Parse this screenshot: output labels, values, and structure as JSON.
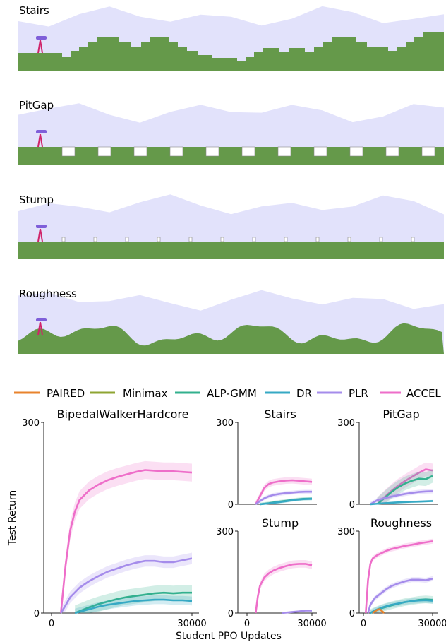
{
  "env_panels": [
    {
      "label": "Stairs"
    },
    {
      "label": "PitGap"
    },
    {
      "label": "Stump"
    },
    {
      "label": "Roughness"
    }
  ],
  "colors": {
    "sky": "#e2e2fb",
    "ground": "#65994a",
    "obstacle_outline": "#888888",
    "walker_head": "#7f5fd9",
    "walker_leg": "#d0246a"
  },
  "legend": [
    {
      "name": "PAIRED",
      "color": "#e8832d"
    },
    {
      "name": "Minimax",
      "color": "#8fa533"
    },
    {
      "name": "ALP-GMM",
      "color": "#33b08e"
    },
    {
      "name": "DR",
      "color": "#36a9c4"
    },
    {
      "name": "PLR",
      "color": "#a58ceb"
    },
    {
      "name": "ACCEL",
      "color": "#ee6ec9"
    }
  ],
  "shared_axes": {
    "ylabel": "Test Return",
    "xlabel": "Student PPO Updates"
  },
  "chart_data": [
    {
      "type": "line",
      "title": "BipedalWalkerHardcore",
      "xlim": [
        0,
        30000
      ],
      "ylim": [
        0,
        300
      ],
      "xticks": [
        0,
        30000
      ],
      "yticks": [
        0,
        300
      ],
      "series": [
        {
          "name": "ACCEL",
          "color": "#ee6ec9",
          "band": 14,
          "x": [
            2000,
            3000,
            4000,
            5000,
            6000,
            8000,
            10000,
            12000,
            14000,
            16000,
            18000,
            20000,
            22000,
            24000,
            26000,
            28000,
            30000
          ],
          "y": [
            0,
            75,
            130,
            160,
            178,
            193,
            202,
            209,
            214,
            218,
            222,
            225,
            224,
            223,
            223,
            222,
            221
          ]
        },
        {
          "name": "PLR",
          "color": "#a58ceb",
          "band": 9,
          "x": [
            2000,
            3000,
            4000,
            6000,
            8000,
            10000,
            12000,
            14000,
            16000,
            18000,
            20000,
            22000,
            24000,
            26000,
            28000,
            30000
          ],
          "y": [
            0,
            12,
            25,
            40,
            50,
            58,
            65,
            70,
            75,
            79,
            82,
            82,
            80,
            80,
            83,
            86
          ]
        },
        {
          "name": "ALP-GMM",
          "color": "#33b08e",
          "band": 12,
          "x": [
            5000,
            8000,
            10000,
            12000,
            14000,
            16000,
            18000,
            20000,
            22000,
            24000,
            26000,
            28000,
            30000
          ],
          "y": [
            0,
            9,
            14,
            18,
            22,
            25,
            27,
            29,
            31,
            32,
            31,
            32,
            32
          ]
        },
        {
          "name": "DR",
          "color": "#36a9c4",
          "band": 7,
          "x": [
            5000,
            8000,
            10000,
            12000,
            14000,
            16000,
            18000,
            20000,
            22000,
            24000,
            26000,
            28000,
            30000
          ],
          "y": [
            0,
            6,
            10,
            13,
            15,
            17,
            19,
            20,
            21,
            21,
            20,
            20,
            19
          ]
        }
      ]
    },
    {
      "type": "line",
      "title": "Stairs",
      "xlim": [
        0,
        30000
      ],
      "ylim": [
        0,
        300
      ],
      "xticks": [],
      "yticks": [
        0,
        300
      ],
      "series": [
        {
          "name": "ACCEL",
          "color": "#ee6ec9",
          "band": 12,
          "x": [
            4000,
            6000,
            8000,
            10000,
            12000,
            15000,
            18000,
            21000,
            24000,
            27000,
            30000
          ],
          "y": [
            0,
            30,
            60,
            74,
            80,
            84,
            87,
            88,
            86,
            84,
            82
          ]
        },
        {
          "name": "PLR",
          "color": "#a58ceb",
          "band": 7,
          "x": [
            4000,
            6000,
            8000,
            10000,
            12000,
            15000,
            18000,
            21000,
            24000,
            27000,
            30000
          ],
          "y": [
            0,
            12,
            22,
            29,
            34,
            38,
            41,
            43,
            45,
            46,
            46
          ]
        },
        {
          "name": "ALP-GMM",
          "color": "#33b08e",
          "band": 6,
          "x": [
            6000,
            10000,
            14000,
            18000,
            22000,
            26000,
            30000
          ],
          "y": [
            0,
            4,
            9,
            13,
            17,
            20,
            21
          ]
        },
        {
          "name": "DR",
          "color": "#36a9c4",
          "band": 5,
          "x": [
            6000,
            10000,
            14000,
            18000,
            22000,
            26000,
            30000
          ],
          "y": [
            0,
            3,
            7,
            11,
            16,
            19,
            20
          ]
        }
      ]
    },
    {
      "type": "line",
      "title": "PitGap",
      "xlim": [
        0,
        30000
      ],
      "ylim": [
        0,
        300
      ],
      "xticks": [],
      "yticks": [
        0,
        300
      ],
      "series": [
        {
          "name": "ACCEL",
          "color": "#ee6ec9",
          "band": 25,
          "x": [
            6000,
            9000,
            12000,
            15000,
            18000,
            21000,
            24000,
            27000,
            30000
          ],
          "y": [
            0,
            25,
            48,
            68,
            85,
            100,
            115,
            128,
            124
          ]
        },
        {
          "name": "ALP-GMM",
          "color": "#33b08e",
          "band": 25,
          "x": [
            6000,
            9000,
            12000,
            15000,
            18000,
            21000,
            24000,
            27000,
            30000
          ],
          "y": [
            0,
            22,
            44,
            62,
            76,
            86,
            94,
            92,
            104
          ]
        },
        {
          "name": "PLR",
          "color": "#a58ceb",
          "band": 8,
          "x": [
            3000,
            6000,
            9000,
            12000,
            15000,
            18000,
            21000,
            24000,
            27000,
            30000
          ],
          "y": [
            0,
            15,
            22,
            28,
            33,
            38,
            42,
            45,
            47,
            48
          ]
        },
        {
          "name": "DR",
          "color": "#36a9c4",
          "band": 4,
          "x": [
            3000,
            9000,
            15000,
            21000,
            25000,
            30000
          ],
          "y": [
            0,
            4,
            7,
            9,
            10,
            12
          ]
        }
      ]
    },
    {
      "type": "line",
      "title": "Stump",
      "xlim": [
        0,
        30000
      ],
      "ylim": [
        0,
        300
      ],
      "xticks": [
        0,
        30000
      ],
      "yticks": [
        0,
        300
      ],
      "series": [
        {
          "name": "ACCEL",
          "color": "#ee6ec9",
          "band": 14,
          "x": [
            4000,
            5000,
            6000,
            8000,
            10000,
            12000,
            15000,
            18000,
            21000,
            24000,
            27000,
            30000
          ],
          "y": [
            0,
            60,
            100,
            130,
            145,
            155,
            165,
            172,
            178,
            180,
            180,
            175
          ]
        },
        {
          "name": "PLR",
          "color": "#a58ceb",
          "band": 4,
          "x": [
            16000,
            20000,
            24000,
            27000,
            30000
          ],
          "y": [
            0,
            3,
            6,
            9,
            9
          ]
        }
      ]
    },
    {
      "type": "line",
      "title": "Roughness",
      "xlim": [
        0,
        30000
      ],
      "ylim": [
        0,
        300
      ],
      "xticks": [
        0,
        30000
      ],
      "yticks": [
        0,
        300
      ],
      "series": [
        {
          "name": "ACCEL",
          "color": "#ee6ec9",
          "band": 9,
          "x": [
            1000,
            2000,
            3000,
            4000,
            6000,
            8000,
            10000,
            12000,
            15000,
            18000,
            21000,
            24000,
            27000,
            30000
          ],
          "y": [
            0,
            120,
            180,
            200,
            212,
            220,
            228,
            234,
            240,
            246,
            250,
            255,
            259,
            263
          ]
        },
        {
          "name": "PLR",
          "color": "#a58ceb",
          "band": 9,
          "x": [
            2000,
            3000,
            5000,
            8000,
            10000,
            12000,
            15000,
            18000,
            21000,
            24000,
            27000,
            30000
          ],
          "y": [
            0,
            30,
            55,
            75,
            88,
            98,
            108,
            116,
            122,
            122,
            120,
            126
          ]
        },
        {
          "name": "ALP-GMM",
          "color": "#33b08e",
          "band": 14,
          "x": [
            3000,
            5000,
            8000,
            12000,
            15000,
            18000,
            21000,
            24000,
            27000,
            30000
          ],
          "y": [
            0,
            8,
            18,
            28,
            34,
            40,
            44,
            48,
            50,
            48
          ]
        },
        {
          "name": "DR",
          "color": "#36a9c4",
          "band": 10,
          "x": [
            3000,
            5000,
            8000,
            12000,
            15000,
            18000,
            21000,
            24000,
            27000,
            30000
          ],
          "y": [
            0,
            10,
            20,
            30,
            35,
            40,
            44,
            46,
            47,
            45
          ]
        },
        {
          "name": "PAIRED",
          "color": "#e8832d",
          "band": 4,
          "x": [
            4000,
            5000,
            6000,
            7000,
            8000,
            9000
          ],
          "y": [
            0,
            6,
            12,
            14,
            8,
            0
          ]
        }
      ]
    }
  ]
}
